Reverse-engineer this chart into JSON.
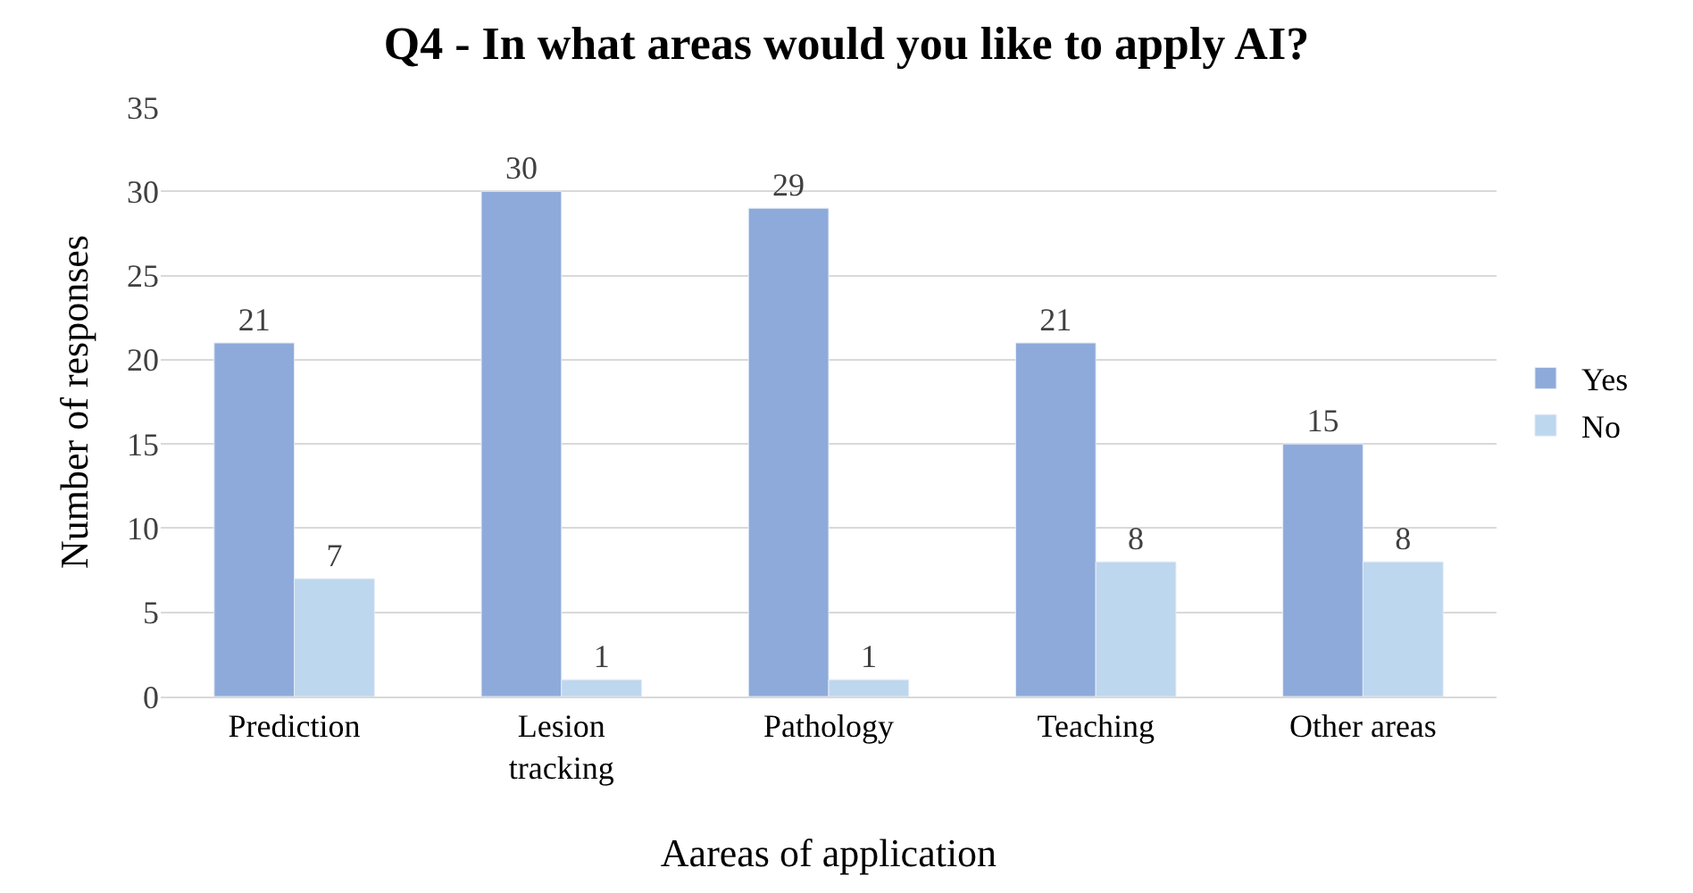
{
  "chart_data": {
    "type": "bar",
    "title": "Q4 - In what areas would you like to apply AI?",
    "xlabel": "Aareas of application",
    "ylabel": "Number of responses",
    "categories": [
      "Prediction",
      "Lesion tracking",
      "Pathology",
      "Teaching",
      "Other areas"
    ],
    "series": [
      {
        "name": "Yes",
        "color": "#8eaadb",
        "values": [
          21,
          30,
          29,
          21,
          15
        ]
      },
      {
        "name": "No",
        "color": "#bdd7ee",
        "values": [
          7,
          1,
          1,
          8,
          8
        ]
      }
    ],
    "ylim": [
      0,
      35
    ],
    "yticks": [
      0,
      5,
      10,
      15,
      20,
      25,
      30,
      35
    ],
    "grid": "y",
    "legend": "right",
    "data_labels": true
  }
}
